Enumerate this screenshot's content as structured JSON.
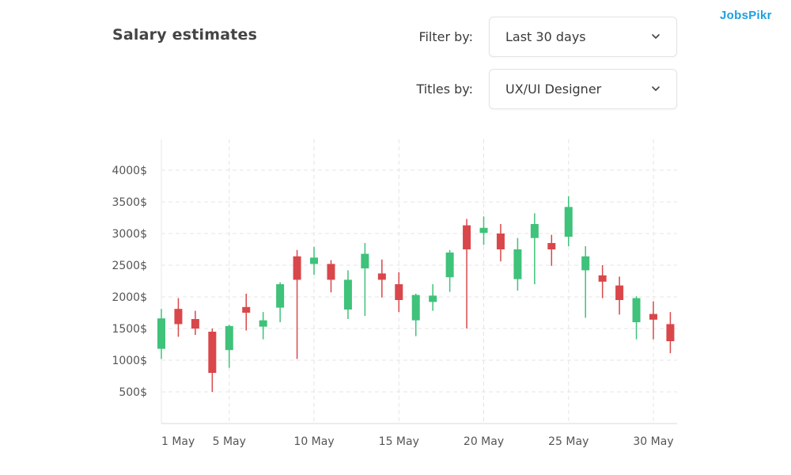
{
  "header": {
    "title": "Salary estimates",
    "filter_label": "Filter by:",
    "filter_value": "Last 30 days",
    "titles_label": "Titles by:",
    "titles_value": "UX/UI Designer"
  },
  "logo": {
    "prefix": "J",
    "o": "o",
    "suffix": "bsPikr"
  },
  "colors": {
    "up": "#3fc27a",
    "down": "#d9474a",
    "grid": "#e4e4e4",
    "logo": "#1aa0e0"
  },
  "chart_data": {
    "type": "candlestick",
    "title": "",
    "xlabel": "",
    "ylabel": "",
    "ylim": [
      0,
      4000
    ],
    "xlim": [
      1,
      30
    ],
    "grid": true,
    "y_ticks": [
      {
        "value": 500,
        "label": "500$"
      },
      {
        "value": 1000,
        "label": "1000$"
      },
      {
        "value": 1500,
        "label": "1500$"
      },
      {
        "value": 2000,
        "label": "2000$"
      },
      {
        "value": 2500,
        "label": "2500$"
      },
      {
        "value": 3000,
        "label": "3000$"
      },
      {
        "value": 3500,
        "label": "3500$"
      },
      {
        "value": 4000,
        "label": "4000$"
      }
    ],
    "x_ticks": [
      {
        "value": 1,
        "label": "1 May"
      },
      {
        "value": 5,
        "label": "5 May"
      },
      {
        "value": 10,
        "label": "10 May"
      },
      {
        "value": 15,
        "label": "15 May"
      },
      {
        "value": 20,
        "label": "20 May"
      },
      {
        "value": 25,
        "label": "25 May"
      },
      {
        "value": 30,
        "label": "30 May"
      }
    ],
    "candles": [
      {
        "day": 2,
        "open": 1180,
        "close": 1660,
        "low": 1020,
        "high": 1810
      },
      {
        "day": 3,
        "open": 1810,
        "close": 1570,
        "low": 1370,
        "high": 1980
      },
      {
        "day": 4,
        "open": 1650,
        "close": 1500,
        "low": 1400,
        "high": 1780
      },
      {
        "day": 5,
        "open": 1450,
        "close": 800,
        "low": 500,
        "high": 1500
      },
      {
        "day": 6,
        "open": 1160,
        "close": 1540,
        "low": 880,
        "high": 1560
      },
      {
        "day": 7,
        "open": 1840,
        "close": 1750,
        "low": 1470,
        "high": 2050
      },
      {
        "day": 8,
        "open": 1530,
        "close": 1630,
        "low": 1330,
        "high": 1760
      },
      {
        "day": 9,
        "open": 1830,
        "close": 2200,
        "low": 1600,
        "high": 2230
      },
      {
        "day": 10,
        "open": 2640,
        "close": 2270,
        "low": 1020,
        "high": 2740
      },
      {
        "day": 11,
        "open": 2520,
        "close": 2620,
        "low": 2350,
        "high": 2790
      },
      {
        "day": 12,
        "open": 2520,
        "close": 2270,
        "low": 2070,
        "high": 2580
      },
      {
        "day": 13,
        "open": 1800,
        "close": 2270,
        "low": 1650,
        "high": 2420
      },
      {
        "day": 14,
        "open": 2450,
        "close": 2680,
        "low": 1700,
        "high": 2850
      },
      {
        "day": 15,
        "open": 2370,
        "close": 2270,
        "low": 1990,
        "high": 2590
      },
      {
        "day": 16,
        "open": 2200,
        "close": 1950,
        "low": 1760,
        "high": 2390
      },
      {
        "day": 17,
        "open": 1630,
        "close": 2030,
        "low": 1380,
        "high": 2050
      },
      {
        "day": 18,
        "open": 1920,
        "close": 2020,
        "low": 1780,
        "high": 2200
      },
      {
        "day": 19,
        "open": 2310,
        "close": 2700,
        "low": 2080,
        "high": 2740
      },
      {
        "day": 20,
        "open": 3130,
        "close": 2750,
        "low": 1500,
        "high": 3230
      },
      {
        "day": 21,
        "open": 3010,
        "close": 3090,
        "low": 2820,
        "high": 3270
      },
      {
        "day": 22,
        "open": 3000,
        "close": 2750,
        "low": 2560,
        "high": 3150
      },
      {
        "day": 23,
        "open": 2280,
        "close": 2750,
        "low": 2100,
        "high": 2930
      },
      {
        "day": 24,
        "open": 2930,
        "close": 3150,
        "low": 2200,
        "high": 3320
      },
      {
        "day": 25,
        "open": 2850,
        "close": 2750,
        "low": 2490,
        "high": 2980
      },
      {
        "day": 26,
        "open": 2950,
        "close": 3420,
        "low": 2800,
        "high": 3590
      },
      {
        "day": 27,
        "open": 2420,
        "close": 2640,
        "low": 1670,
        "high": 2800
      },
      {
        "day": 28,
        "open": 2340,
        "close": 2240,
        "low": 1980,
        "high": 2500
      },
      {
        "day": 29,
        "open": 2180,
        "close": 1950,
        "low": 1720,
        "high": 2320
      },
      {
        "day": 30,
        "open": 1600,
        "close": 1980,
        "low": 1330,
        "high": 2010
      },
      {
        "day": 31,
        "open": 1730,
        "close": 1640,
        "low": 1330,
        "high": 1930
      },
      {
        "day": 32,
        "open": 1570,
        "close": 1300,
        "low": 1110,
        "high": 1760
      }
    ]
  }
}
